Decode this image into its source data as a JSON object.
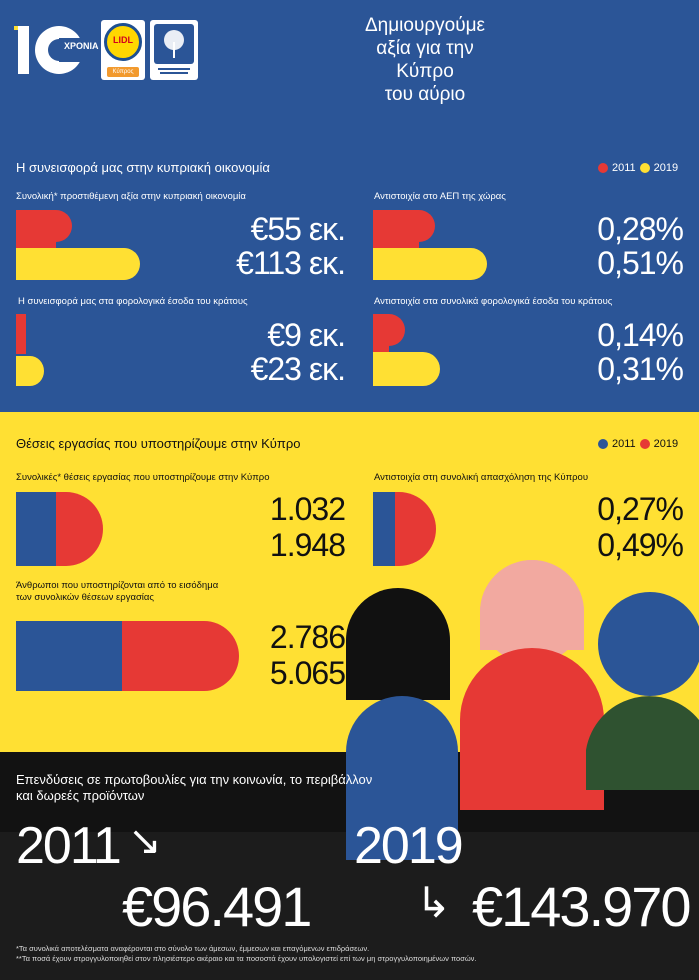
{
  "header": {
    "logo_number": "10",
    "logo_sub": "ΧΡΟΝΙΑ",
    "lidl_label": "LIDL",
    "lidl_sub": "Κύπρος",
    "heading_lines": [
      "Δημιουργούμε",
      "αξία για την",
      "Κύπρο",
      "του αύριο"
    ]
  },
  "colors": {
    "blue": "#2B5597",
    "yellow": "#FFE033",
    "red": "#E63935",
    "dark": "#1c1c1c",
    "pink": "#F2A9A0",
    "green": "#2F5230",
    "black": "#111111"
  },
  "economy": {
    "title": "Η συνεισφορά μας στην κυπριακή οικονομία",
    "legend": [
      {
        "label": "2011",
        "color": "#E63935"
      },
      {
        "label": "2019",
        "color": "#FFE033"
      }
    ],
    "panels": [
      {
        "label": "Συνολική* προστιθέμενη αξία στην κυπριακή οικονομία",
        "v2011": "€55 εκ.",
        "v2019": "€113 εκ."
      },
      {
        "label": "Αντιστοιχία στο ΑΕΠ της χώρας",
        "v2011": "0,28%",
        "v2019": "0,51%"
      },
      {
        "label": "Η συνεισφορά μας στα φορολογικά έσοδα του κράτους",
        "v2011": "€9 εκ.",
        "v2019": "€23 εκ."
      },
      {
        "label": "Αντιστοιχία στα συνολικά φορολογικά έσοδα του κράτους",
        "v2011": "0,14%",
        "v2019": "0,31%"
      }
    ]
  },
  "jobs": {
    "title": "Θέσεις εργασίας που υποστηρίζουμε στην Κύπρο",
    "legend": [
      {
        "label": "2011",
        "color": "#2B5597"
      },
      {
        "label": "2019",
        "color": "#E63935"
      }
    ],
    "panels": [
      {
        "label": "Συνολικές* θέσεις εργασίας που υποστηρίζουμε στην Κύπρο",
        "v2011": "1.032",
        "v2019": "1.948"
      },
      {
        "label": "Αντιστοιχία στη συνολική απασχόληση της Κύπρου",
        "v2011": "0,27%",
        "v2019": "0,49%"
      },
      {
        "label_line1": "Άνθρωποι που υποστηρίζονται από το εισόδημα",
        "label_line2": "των συνολικών θέσεων εργασίας",
        "v2011": "2.786",
        "v2019": "5.065"
      }
    ]
  },
  "investment": {
    "title_line1": "Επενδύσεις σε πρωτοβουλίες για την κοινωνία, το περιβάλλον",
    "title_line2": "και δωρεές προϊόντων",
    "year1": "2011",
    "arrow1": "↘",
    "value1": "€96.491",
    "year2": "2019",
    "arrow2": "↳",
    "value2": "€143.970"
  },
  "footnotes": [
    "*Τα συνολικά αποτελέσματα αναφέρονται στο σύνολο των άμεσων, έμμεσων και επαγόμενων επιδράσεων.",
    "**Τα ποσά έχουν στρογγυλοποιηθεί στον πλησιέστερο ακέραιο και τα ποσοστά έχουν υπολογιστεί επί των μη στρογγυλοποιημένων ποσών."
  ]
}
